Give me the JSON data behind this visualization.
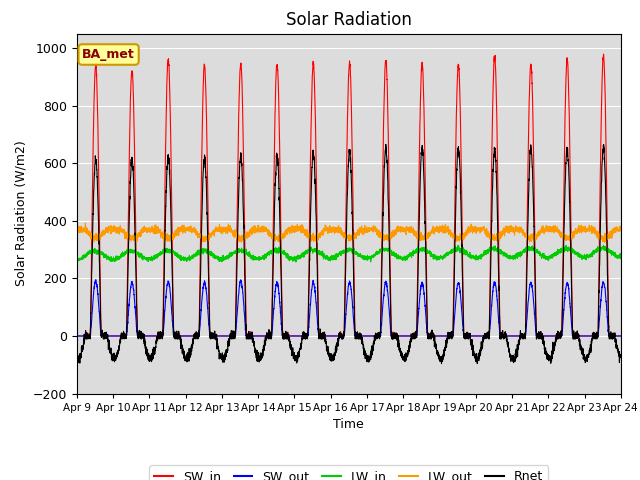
{
  "title": "Solar Radiation",
  "ylabel": "Solar Radiation (W/m2)",
  "xlabel": "Time",
  "xlim_days": [
    9,
    24
  ],
  "ylim": [
    -200,
    1050
  ],
  "yticks": [
    -200,
    0,
    200,
    400,
    600,
    800,
    1000
  ],
  "xtick_labels": [
    "Apr 9",
    "Apr 10",
    "Apr 11",
    "Apr 12",
    "Apr 13",
    "Apr 14",
    "Apr 15",
    "Apr 16",
    "Apr 17",
    "Apr 18",
    "Apr 19",
    "Apr 20",
    "Apr 21",
    "Apr 22",
    "Apr 23",
    "Apr 24"
  ],
  "colors": {
    "SW_in": "#ff0000",
    "SW_out": "#0000ff",
    "LW_in": "#00cc00",
    "LW_out": "#ff9900",
    "Rnet": "#000000"
  },
  "legend_label": "BA_met",
  "legend_box_color": "#ffff99",
  "legend_border_color": "#cc9900",
  "background_color": "#dcdcdc",
  "title_fontsize": 12,
  "axis_fontsize": 9,
  "n_days": 15,
  "SW_in_peak": [
    940,
    920,
    960,
    940,
    945,
    945,
    945,
    945,
    960,
    945,
    940,
    970,
    945,
    960,
    970
  ],
  "SW_out_peak": [
    190,
    185,
    190,
    185,
    190,
    185,
    185,
    185,
    185,
    185,
    185,
    185,
    185,
    185,
    185
  ],
  "LW_in_base": 280,
  "LW_out_base": 370,
  "Rnet_peak": [
    615,
    615,
    625,
    620,
    625,
    625,
    635,
    640,
    650,
    650,
    650,
    650,
    650,
    650,
    650
  ],
  "Rnet_night": -80,
  "day_rise_hour": 5.5,
  "day_set_hour": 20.0,
  "day_mid_hour": 12.5
}
